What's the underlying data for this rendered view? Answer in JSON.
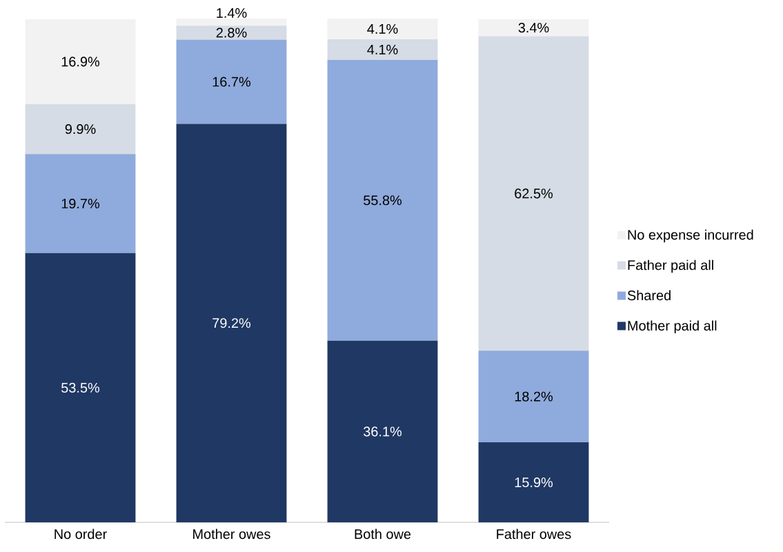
{
  "chart_data": {
    "type": "bar",
    "stacked": true,
    "legend": "right",
    "categories": [
      "No order",
      "Mother owes",
      "Both owe",
      "Father owes"
    ],
    "series": [
      {
        "name": "Mother paid all",
        "color": "#203864",
        "values": [
          53.5,
          79.2,
          36.1,
          15.9
        ],
        "value_labels": [
          "53.5%",
          "79.2%",
          "36.1%",
          "15.9%"
        ]
      },
      {
        "name": "Shared",
        "color": "#8faadc",
        "values": [
          19.7,
          16.7,
          55.8,
          18.2
        ],
        "value_labels": [
          "19.7%",
          "16.7%",
          "55.8%",
          "18.2%"
        ]
      },
      {
        "name": "Father paid all",
        "color": "#d6dce5",
        "values": [
          9.9,
          2.8,
          4.1,
          62.5
        ],
        "value_labels": [
          "9.9%",
          "2.8%",
          "4.1%",
          "62.5%"
        ]
      },
      {
        "name": "No expense incurred",
        "color": "#f2f2f2",
        "values": [
          16.9,
          1.4,
          4.1,
          3.4
        ],
        "value_labels": [
          "16.9%",
          "1.4%",
          "4.1%",
          "3.4%"
        ]
      }
    ]
  }
}
